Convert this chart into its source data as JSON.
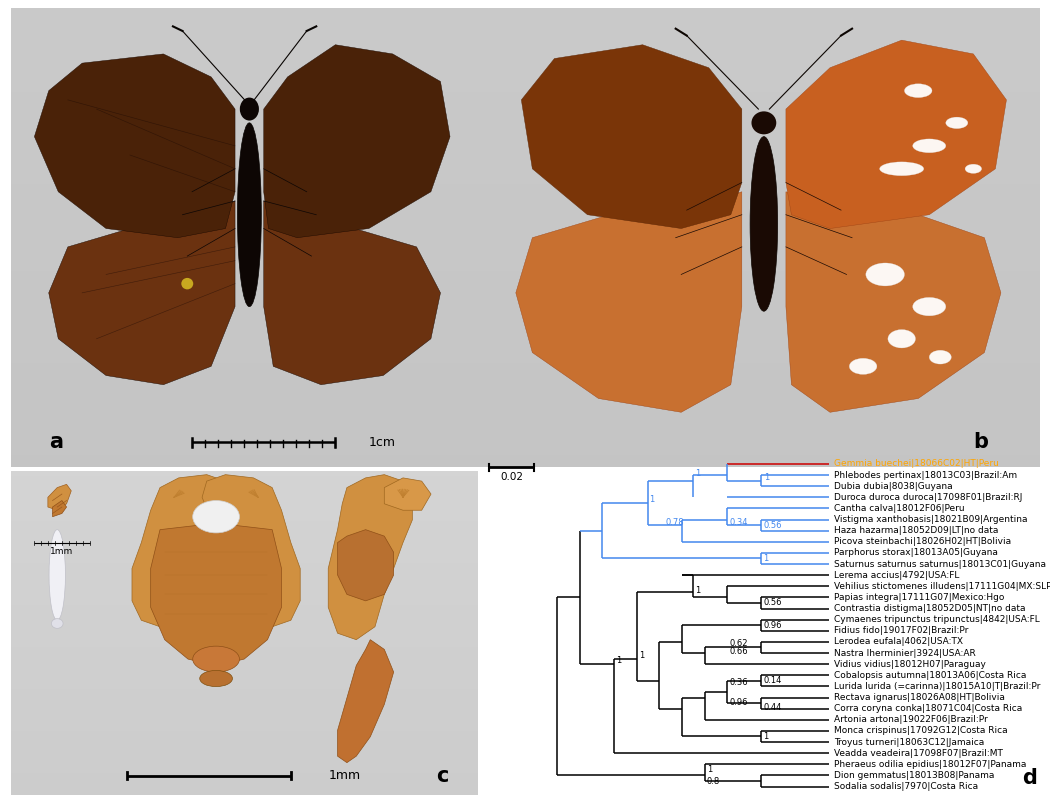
{
  "bg_color": "#ffffff",
  "panel_bg_abc": "#d2d2d2",
  "tip_labels": [
    "Gemmia buechei|18066C02|HT|Peru",
    "Phlebodes pertinax|18013C03|Brazil:Am",
    "Dubia dubia|8038|Guyana",
    "Duroca duroca duroca|17098F01|Brazil:RJ",
    "Cantha calva|18012F06|Peru",
    "Vistigma xanthobasis|18021B09|Argentina",
    "Haza hazarma|18052D09|LT|no data",
    "Picova steinbachi|18026H02|HT|Bolivia",
    "Parphorus storax|18013A05|Guyana",
    "Saturnus saturnus saturnus|18013C01|Guyana",
    "Lerema accius|4792|USA:FL",
    "Vehilius stictomenes illudens|17111G04|MX:SLP",
    "Papias integra|17111G07|Mexico:Hgo",
    "Contrastia distigma|18052D05|NT|no data",
    "Cymaenes tripunctus tripunctus|4842|USA:FL",
    "Fidius fido|19017F02|Brazil:Pr",
    "Lerodea eufala|4062|USA:TX",
    "Nastra lherminier|3924|USA:AR",
    "Vidius vidius|18012H07|Paraguay",
    "Cobalopsis autumna|18013A06|Costa Rica",
    "Lurida lurida (=carinna)|18015A10|T|Brazil:Pr",
    "Rectava ignarus|18026A08|HT|Bolivia",
    "Corra coryna conka|18071C04|Costa Rica",
    "Artonia artona|19022F06|Brazil:Pr",
    "Monca crispinus|17092G12|Costa Rica",
    "Troyus turneri|18063C12|Jamaica",
    "Veadda veadeira|17098F07|Brazil:MT",
    "Pheraeus odilia epidius|18012F07|Panama",
    "Dion gemmatus|18013B08|Panama",
    "Sodalia sodalis|7970|Costa Rica"
  ],
  "label_a": "a",
  "label_b": "b",
  "label_c": "c",
  "label_d": "d",
  "scale_1cm": "1cm",
  "scale_1mm_small": "1mm",
  "scale_1mm_large": "1mm",
  "scale_02": "0.02",
  "blue": "#4488EE",
  "red": "#CC0000",
  "orange": "#FFA500",
  "black": "#000000",
  "wing_dark": "#2a1205",
  "wing_med": "#4a2208",
  "wing_lt": "#6b3210",
  "wing_orange": "#8b4010",
  "wing_bright": "#b85820",
  "genitalia_orange": "#c88030",
  "genitalia_dark": "#8b5010"
}
